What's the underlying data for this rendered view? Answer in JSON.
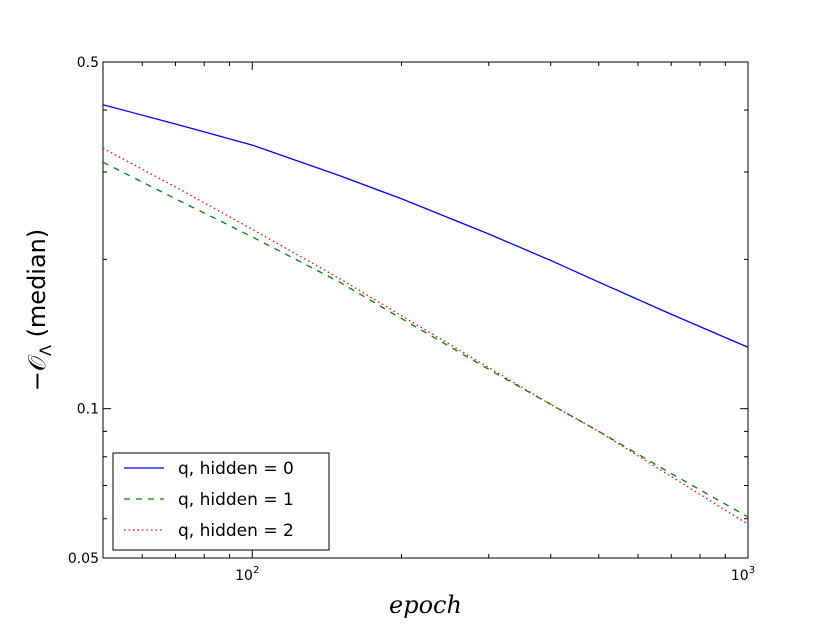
{
  "chart_data": {
    "type": "line",
    "title": "",
    "xlabel": "epoch",
    "ylabel": "−𝒪_Λ (median)",
    "ylabel_parts": {
      "prefix": "−𝒪",
      "subscript": "Λ",
      "suffix": " (median)"
    },
    "xscale": "log",
    "yscale": "log",
    "xlim": [
      50,
      1000
    ],
    "ylim": [
      0.05,
      0.5
    ],
    "x_ticks": [
      {
        "value": 100,
        "base": "10",
        "exp": "2"
      },
      {
        "value": 1000,
        "base": "10",
        "exp": "3"
      }
    ],
    "y_ticks": [
      {
        "value": 0.05,
        "label": "0.05"
      },
      {
        "value": 0.1,
        "label": "0.1"
      },
      {
        "value": 0.5,
        "label": "0.5"
      }
    ],
    "grid": false,
    "legend_position": "lower-left",
    "series": [
      {
        "name": "q, hidden = 0",
        "color": "#0000ff",
        "dash": "solid",
        "x": [
          50,
          70,
          100,
          150,
          200,
          300,
          400,
          500,
          700,
          1000
        ],
        "y": [
          0.41,
          0.375,
          0.34,
          0.295,
          0.265,
          0.225,
          0.199,
          0.18,
          0.155,
          0.133
        ]
      },
      {
        "name": "q, hidden = 1",
        "color": "#008000",
        "dash": "dashed",
        "x": [
          50,
          70,
          100,
          150,
          200,
          300,
          400,
          500,
          700,
          1000
        ],
        "y": [
          0.314,
          0.265,
          0.222,
          0.18,
          0.152,
          0.12,
          0.102,
          0.09,
          0.074,
          0.0605
        ]
      },
      {
        "name": "q, hidden = 2",
        "color": "#ff0000",
        "dash": "dotted",
        "x": [
          50,
          70,
          100,
          150,
          200,
          300,
          400,
          500,
          700,
          1000
        ],
        "y": [
          0.335,
          0.28,
          0.23,
          0.183,
          0.154,
          0.121,
          0.102,
          0.09,
          0.073,
          0.0585
        ]
      }
    ]
  }
}
